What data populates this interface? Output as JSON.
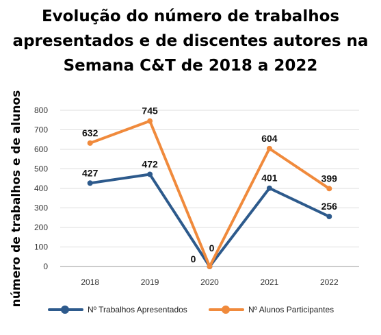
{
  "chart_data": {
    "type": "line",
    "title_lines": [
      "Evolução do número de trabalhos",
      "apresentados e de discentes autores na",
      "Semana C&T de 2018 a 2022"
    ],
    "ylabel": "número de trabalhos e de alunos",
    "categories": [
      "2018",
      "2019",
      "2020",
      "2021",
      "2022"
    ],
    "yticks": [
      "0",
      "100",
      "200",
      "300",
      "400",
      "500",
      "600",
      "700",
      "800"
    ],
    "ylim": [
      0,
      800
    ],
    "grid": true,
    "legend_position": "bottom",
    "series": [
      {
        "name": "Nº Trabalhos Apresentados",
        "color": "#2d5a8c",
        "values": [
          427,
          472,
          0,
          401,
          256
        ],
        "labels": [
          "427",
          "472",
          "0",
          "401",
          "256"
        ]
      },
      {
        "name": "Nº Alunos Participantes",
        "color": "#f08a3c",
        "values": [
          632,
          745,
          0,
          604,
          399
        ],
        "labels": [
          "632",
          "745",
          "0",
          "604",
          "399"
        ]
      }
    ]
  }
}
